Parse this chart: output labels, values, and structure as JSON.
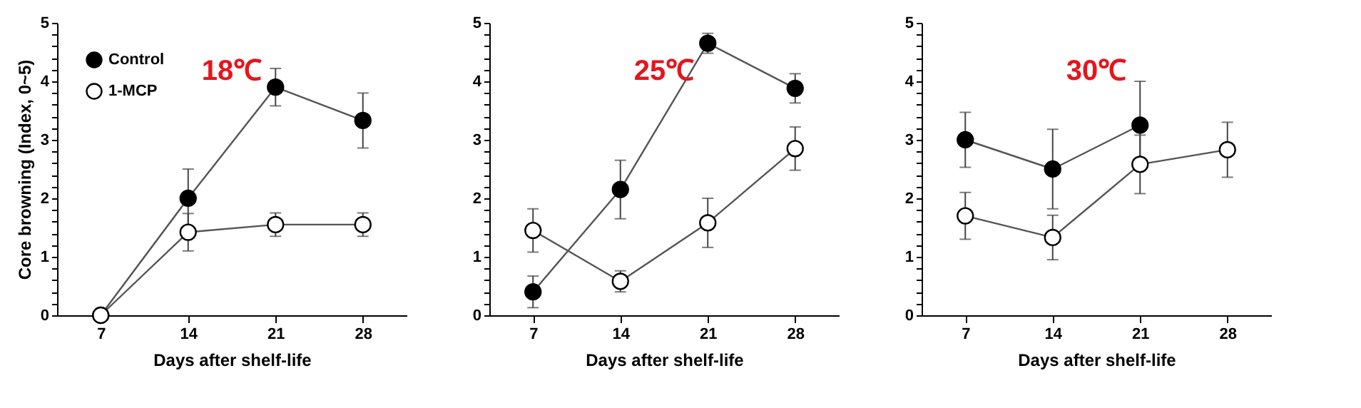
{
  "chart_data": [
    {
      "type": "line",
      "title": "18℃",
      "xlabel": "Days  after shelf-life",
      "ylabel": "Core browning (Index, 0~5)",
      "x": [
        7,
        14,
        21,
        28
      ],
      "xlim": [
        3.5,
        31.5
      ],
      "xticks": [
        7,
        14,
        21,
        28
      ],
      "ylim": [
        0,
        5
      ],
      "yticks": [
        0,
        {
          "value": 0.2,
          "label": null
        },
        {
          "value": 0.4,
          "label": null
        },
        {
          "value": 0.6,
          "label": null
        },
        {
          "value": 0.8,
          "label": null
        },
        1,
        {
          "value": 1.2,
          "label": null
        },
        {
          "value": 1.4,
          "label": null
        },
        {
          "value": 1.6,
          "label": null
        },
        {
          "value": 1.8,
          "label": null
        },
        2,
        {
          "value": 2.2,
          "label": null
        },
        {
          "value": 2.4,
          "label": null
        },
        {
          "value": 2.6,
          "label": null
        },
        {
          "value": 2.8,
          "label": null
        },
        3,
        {
          "value": 3.2,
          "label": null
        },
        {
          "value": 3.4,
          "label": null
        },
        {
          "value": 3.6,
          "label": null
        },
        {
          "value": 3.8,
          "label": null
        },
        4,
        {
          "value": 4.2,
          "label": null
        },
        {
          "value": 4.4,
          "label": null
        },
        {
          "value": 4.6,
          "label": null
        },
        {
          "value": 4.8,
          "label": null
        },
        5
      ],
      "legend": "top left",
      "marker": "circle",
      "grid": false,
      "series": [
        {
          "name": "Control",
          "color": "#000000",
          "values": [
            0,
            2.0,
            3.9,
            3.33
          ],
          "errors": [
            null,
            0.5,
            0.32,
            0.47
          ]
        },
        {
          "name": "1-MCP",
          "color": "#ffffff",
          "values": [
            0,
            1.42,
            1.55,
            1.55
          ],
          "errors": [
            null,
            0.32,
            0.2,
            0.2
          ]
        }
      ]
    },
    {
      "type": "line",
      "title": "25℃",
      "xlabel": "Days  after shelf-life",
      "x": [
        7,
        14,
        21,
        28
      ],
      "xlim": [
        3.5,
        31.5
      ],
      "xticks": [
        7,
        14,
        21,
        28
      ],
      "ylim": [
        0,
        5
      ],
      "yticks": [
        0,
        {
          "value": 0.2,
          "label": null
        },
        {
          "value": 0.4,
          "label": null
        },
        {
          "value": 0.6,
          "label": null
        },
        {
          "value": 0.8,
          "label": null
        },
        1,
        {
          "value": 1.2,
          "label": null
        },
        {
          "value": 1.4,
          "label": null
        },
        {
          "value": 1.6,
          "label": null
        },
        {
          "value": 1.8,
          "label": null
        },
        2,
        {
          "value": 2.2,
          "label": null
        },
        {
          "value": 2.4,
          "label": null
        },
        {
          "value": 2.6,
          "label": null
        },
        {
          "value": 2.8,
          "label": null
        },
        3,
        {
          "value": 3.2,
          "label": null
        },
        {
          "value": 3.4,
          "label": null
        },
        {
          "value": 3.6,
          "label": null
        },
        {
          "value": 3.8,
          "label": null
        },
        4,
        {
          "value": 4.2,
          "label": null
        },
        {
          "value": 4.4,
          "label": null
        },
        {
          "value": 4.6,
          "label": null
        },
        {
          "value": 4.8,
          "label": null
        },
        5
      ],
      "legend": "top left",
      "marker": "circle",
      "grid": false,
      "series": [
        {
          "name": "Control",
          "color": "#000000",
          "values": [
            0.4,
            2.15,
            4.65,
            3.88
          ],
          "errors": [
            0.27,
            0.5,
            0.17,
            0.25
          ]
        },
        {
          "name": "1-MCP",
          "color": "#ffffff",
          "values": [
            1.45,
            0.58,
            1.58,
            2.85
          ],
          "errors": [
            0.37,
            0.18,
            0.42,
            0.37
          ]
        }
      ]
    },
    {
      "type": "line",
      "title": "30℃",
      "xlabel": "Days  after shelf-life",
      "x": [
        7,
        14,
        21,
        28
      ],
      "xlim": [
        3.5,
        31.5
      ],
      "xticks": [
        7,
        14,
        21,
        28
      ],
      "ylim": [
        0,
        5
      ],
      "yticks": [
        0,
        {
          "value": 0.2,
          "label": null
        },
        {
          "value": 0.4,
          "label": null
        },
        {
          "value": 0.6,
          "label": null
        },
        {
          "value": 0.8,
          "label": null
        },
        1,
        {
          "value": 1.2,
          "label": null
        },
        {
          "value": 1.4,
          "label": null
        },
        {
          "value": 1.6,
          "label": null
        },
        {
          "value": 1.8,
          "label": null
        },
        2,
        {
          "value": 2.2,
          "label": null
        },
        {
          "value": 2.4,
          "label": null
        },
        {
          "value": 2.6,
          "label": null
        },
        {
          "value": 2.8,
          "label": null
        },
        3,
        {
          "value": 3.2,
          "label": null
        },
        {
          "value": 3.4,
          "label": null
        },
        {
          "value": 3.6,
          "label": null
        },
        {
          "value": 3.8,
          "label": null
        },
        4,
        {
          "value": 4.2,
          "label": null
        },
        {
          "value": 4.4,
          "label": null
        },
        {
          "value": 4.6,
          "label": null
        },
        {
          "value": 4.8,
          "label": null
        },
        5
      ],
      "legend": "top left",
      "marker": "circle",
      "grid": false,
      "series": [
        {
          "name": "Control",
          "color": "#000000",
          "values": [
            3.0,
            2.5,
            3.25,
            null
          ],
          "errors": [
            0.47,
            0.68,
            0.75,
            null
          ]
        },
        {
          "name": "1-MCP",
          "color": "#ffffff",
          "values": [
            1.7,
            1.33,
            2.58,
            2.83
          ],
          "errors": [
            0.4,
            0.38,
            0.5,
            0.47
          ]
        }
      ]
    }
  ]
}
